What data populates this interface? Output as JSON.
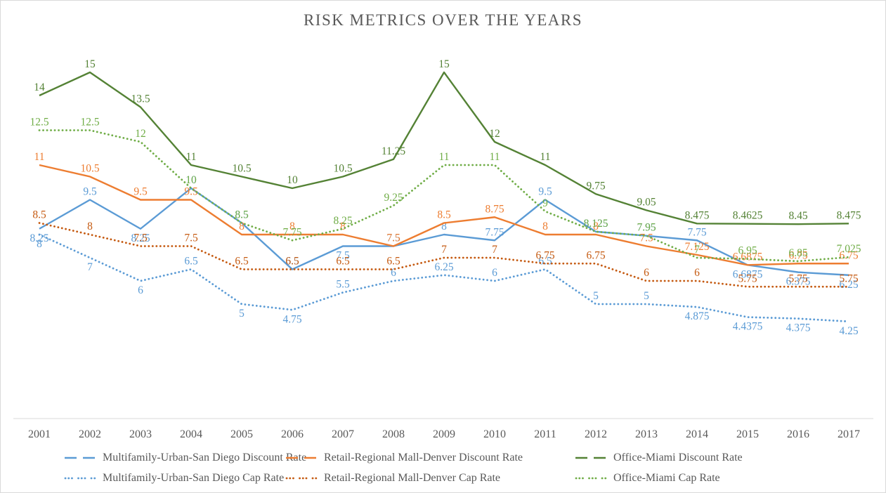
{
  "title": "RISK METRICS OVER THE YEARS",
  "colors": {
    "blue": "#5B9BD5",
    "orange": "#ED7D31",
    "dark_orange": "#C55A11",
    "dark_green": "#548235",
    "light_green": "#70AD47",
    "text_gray": "#595959",
    "axis_line": "#D9D9D9"
  },
  "chart_data": {
    "type": "line",
    "x": [
      2001,
      2002,
      2003,
      2004,
      2005,
      2006,
      2007,
      2008,
      2009,
      2010,
      2011,
      2012,
      2013,
      2014,
      2015,
      2016,
      2017
    ],
    "x_labels": [
      "2001",
      "2002",
      "2003",
      "2004",
      "2005",
      "2006",
      "2007",
      "2008",
      "2009",
      "2010",
      "2011",
      "2012",
      "2013",
      "2014",
      "2015",
      "2016",
      "2017"
    ],
    "series": [
      {
        "name": "Multifamily-Urban-San Diego Discount Rate",
        "line_style": "solid",
        "color_key": "blue",
        "values": [
          8.25,
          9.5,
          8.25,
          10,
          8.5,
          6.5,
          7.5,
          7.5,
          8,
          7.75,
          9.5,
          8.125,
          7.95,
          7.75,
          6.6875,
          6.375,
          6.25
        ],
        "label_below": [
          0,
          2,
          6,
          14,
          15,
          16
        ]
      },
      {
        "name": "Retail-Regional Mall-Denver Discount Rate",
        "line_style": "solid",
        "color_key": "orange",
        "values": [
          11,
          10.5,
          9.5,
          9.5,
          8,
          8,
          8,
          7.5,
          8.5,
          8.75,
          8,
          8,
          7.5,
          7.125,
          6.6875,
          6.75,
          6.75
        ],
        "label_below": []
      },
      {
        "name": "Office-Miami Discount Rate",
        "line_style": "solid",
        "color_key": "dark_green",
        "values": [
          14,
          15,
          13.5,
          11,
          10.5,
          10,
          10.5,
          11.25,
          15,
          12,
          11,
          9.75,
          9.05,
          8.475,
          8.4625,
          8.45,
          8.475
        ],
        "label_below": []
      },
      {
        "name": "Multifamily-Urban-San Diego Cap Rate",
        "line_style": "dotted",
        "color_key": "blue",
        "values": [
          8,
          7,
          6,
          6.5,
          5,
          4.75,
          5.5,
          6,
          6.25,
          6,
          6.5,
          5,
          5,
          4.875,
          4.4375,
          4.375,
          4.25
        ],
        "label_below": [
          0,
          1,
          2,
          4,
          5,
          13,
          14,
          15,
          16
        ]
      },
      {
        "name": "Retail-Regional Mall-Denver Cap Rate",
        "line_style": "dotted",
        "color_key": "dark_orange",
        "values": [
          8.5,
          8,
          7.5,
          7.5,
          6.5,
          6.5,
          6.5,
          6.5,
          7,
          7,
          6.75,
          6.75,
          6,
          6,
          5.75,
          5.75,
          5.75
        ],
        "label_below": []
      },
      {
        "name": "Office-Miami Cap Rate",
        "line_style": "dotted",
        "color_key": "light_green",
        "values": [
          12.5,
          12.5,
          12,
          10,
          8.5,
          7.75,
          8.25,
          9.25,
          11,
          11,
          9,
          8.125,
          7.95,
          7,
          6.95,
          6.85,
          7.025
        ],
        "label_below": []
      }
    ],
    "xlabel": "",
    "ylabel": "",
    "ylim": [
      4,
      15.5
    ],
    "grid": false,
    "y_axis_visible": false,
    "legend_position": "bottom"
  }
}
